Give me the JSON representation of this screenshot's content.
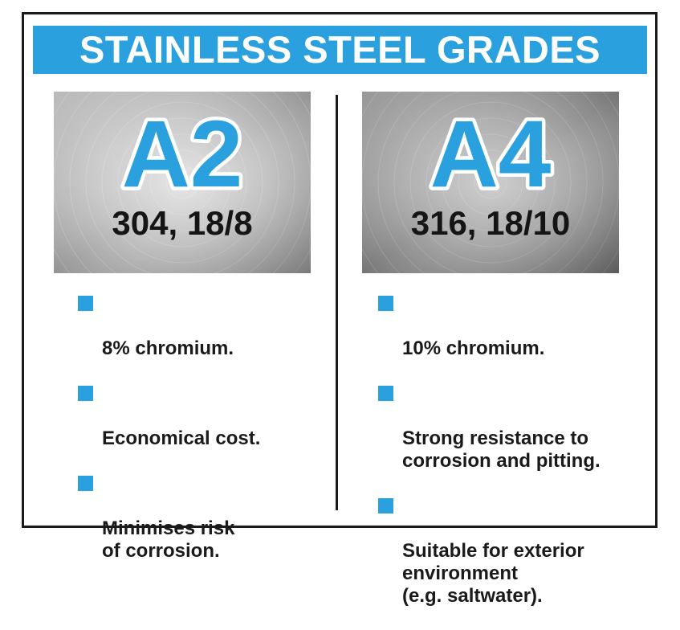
{
  "title": "STAINLESS STEEL GRADES",
  "colors": {
    "accent": "#2aa0de",
    "border": "#1a1a1a",
    "steel_light": "#d8d8d8",
    "steel_dark": "#8a8a8a"
  },
  "grades": [
    {
      "grade": "A2",
      "spec": "304, 18/8",
      "points": [
        "8% chromium.",
        "Economical cost.",
        "Minimises risk\nof corrosion."
      ]
    },
    {
      "grade": "A4",
      "spec": "316, 18/10",
      "points": [
        "10% chromium.",
        "Strong resistance to\ncorrosion and pitting.",
        "Suitable for exterior\nenvironment\n(e.g. saltwater)."
      ]
    }
  ],
  "icons": {
    "bullet": "blue-square-icon"
  }
}
